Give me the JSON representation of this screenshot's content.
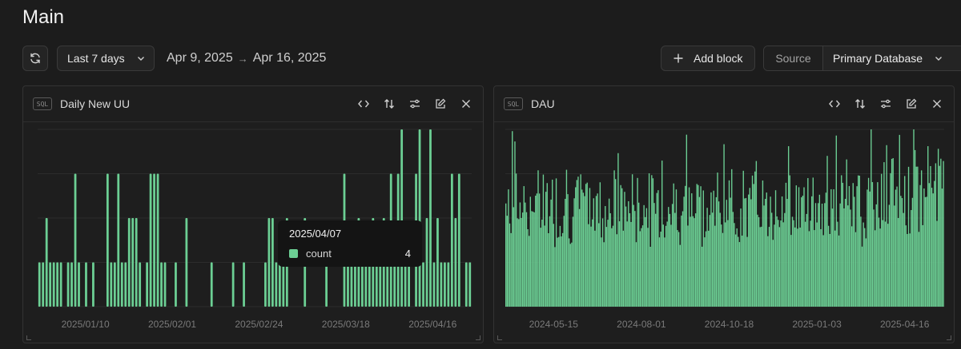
{
  "page": {
    "title": "Main"
  },
  "toolbar": {
    "range_label": "Last 7 days",
    "date_from": "Apr 9, 2025",
    "date_arrow": "→",
    "date_to": "Apr 16, 2025",
    "add_block_label": "Add block",
    "source_label": "Source",
    "source_value": "Primary Database"
  },
  "colors": {
    "bar": "#6ccf94",
    "background": "#1e1e1e",
    "grid": "#2c2c2c"
  },
  "panels": [
    {
      "badge": "SQL",
      "title": "Daily New UU",
      "icons": [
        "code-icon",
        "sort-icon",
        "settings-sliders-icon",
        "edit-icon",
        "close-icon"
      ],
      "tooltip": {
        "date": "2025/04/07",
        "series": "count",
        "value": "4"
      }
    },
    {
      "badge": "SQL",
      "title": "DAU",
      "icons": [
        "code-icon",
        "sort-icon",
        "settings-sliders-icon",
        "edit-icon",
        "close-icon"
      ]
    }
  ],
  "chart_data": [
    {
      "type": "bar",
      "title": "Daily New UU",
      "series": [
        {
          "name": "count",
          "values": [
            1,
            1,
            2,
            1,
            1,
            1,
            1,
            0,
            1,
            1,
            3,
            1,
            0,
            1,
            0,
            1,
            0,
            0,
            0,
            3,
            1,
            1,
            3,
            1,
            1,
            2,
            2,
            2,
            1,
            0,
            1,
            3,
            3,
            3,
            1,
            1,
            0,
            0,
            1,
            0,
            0,
            2,
            0,
            0,
            0,
            0,
            0,
            0,
            1,
            0,
            0,
            0,
            0,
            0,
            1,
            0,
            0,
            1,
            0,
            0,
            0,
            0,
            0,
            1,
            2,
            2,
            1,
            1,
            1,
            2,
            0,
            0,
            0,
            0,
            2,
            0,
            0,
            0,
            0,
            0,
            1,
            0,
            0,
            0,
            0,
            3,
            1,
            1,
            1,
            2,
            1,
            1,
            1,
            2,
            1,
            1,
            2,
            1,
            3,
            1,
            3,
            4,
            1,
            1,
            0,
            3,
            4,
            1,
            2,
            4,
            1,
            2,
            1,
            1,
            1,
            3,
            2,
            3,
            0,
            1,
            1
          ]
        }
      ],
      "x_range": [
        "2025/01/01",
        "2025/04/30"
      ],
      "xticks": [
        "2025/01/10",
        "2025/02/01",
        "2025/02/24",
        "2025/03/18",
        "2025/04/16"
      ],
      "ylim": [
        0,
        4
      ],
      "grid": true
    },
    {
      "type": "bar",
      "title": "DAU",
      "xticks": [
        "2024-05-15",
        "2024-08-01",
        "2024-10-18",
        "2025-01-03",
        "2025-04-16"
      ],
      "grid": true
    }
  ]
}
